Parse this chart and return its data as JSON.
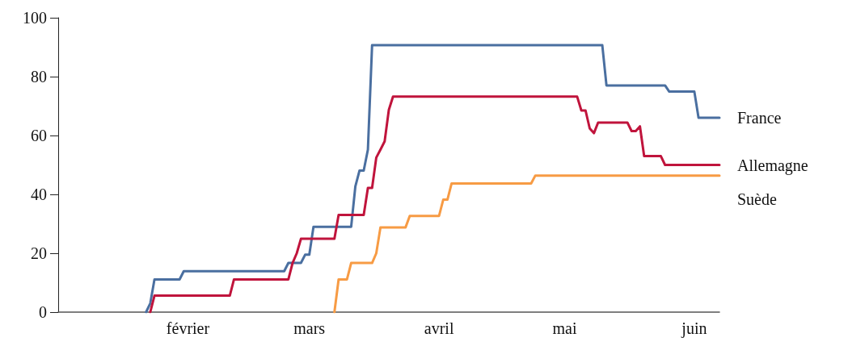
{
  "chart_data": {
    "type": "line",
    "categories": [
      null,
      null,
      null,
      null,
      null,
      null,
      null,
      null,
      null,
      null,
      null,
      null,
      null,
      null,
      null,
      null,
      null,
      null,
      null,
      null,
      null,
      null,
      null,
      null,
      null,
      null,
      null,
      null,
      null,
      null,
      null,
      "février",
      null,
      null,
      null,
      null,
      null,
      null,
      null,
      null,
      null,
      null,
      null,
      null,
      null,
      null,
      null,
      null,
      null,
      null,
      null,
      null,
      null,
      null,
      null,
      null,
      null,
      null,
      null,
      null,
      "mars",
      null,
      null,
      null,
      null,
      null,
      null,
      null,
      null,
      null,
      null,
      null,
      null,
      null,
      null,
      null,
      null,
      null,
      null,
      null,
      null,
      null,
      null,
      null,
      null,
      null,
      null,
      null,
      null,
      null,
      null,
      "avril",
      null,
      null,
      null,
      null,
      null,
      null,
      null,
      null,
      null,
      null,
      null,
      null,
      null,
      null,
      null,
      null,
      null,
      null,
      null,
      null,
      null,
      null,
      null,
      null,
      null,
      null,
      null,
      null,
      null,
      "mai",
      null,
      null,
      null,
      null,
      null,
      null,
      null,
      null,
      null,
      null,
      null,
      null,
      null,
      null,
      null,
      null,
      null,
      null,
      null,
      null,
      null,
      null,
      null,
      null,
      null,
      null,
      null,
      null,
      null,
      null,
      "juin",
      null,
      null,
      null,
      null,
      null,
      null
    ],
    "ylim": [
      0,
      100
    ],
    "yticks": [
      0,
      20,
      40,
      60,
      80,
      100
    ],
    "grid": false,
    "marker": "none",
    "line_style": "solid",
    "series": [
      {
        "name": "France",
        "color": "#4a6fa0",
        "values": [
          null,
          null,
          null,
          null,
          null,
          null,
          null,
          null,
          null,
          null,
          null,
          null,
          null,
          null,
          null,
          null,
          null,
          null,
          null,
          null,
          null,
          0,
          3,
          11.1,
          11.1,
          11.1,
          11.1,
          11.1,
          11.1,
          11.1,
          13.9,
          13.9,
          13.9,
          13.9,
          13.9,
          13.9,
          13.9,
          13.9,
          13.9,
          13.9,
          13.9,
          13.9,
          13.9,
          13.9,
          13.9,
          13.9,
          13.9,
          13.9,
          13.9,
          13.9,
          13.9,
          13.9,
          13.9,
          13.9,
          13.9,
          16.7,
          16.7,
          16.7,
          16.7,
          19.5,
          19.5,
          29,
          29,
          29,
          29,
          29,
          29,
          29,
          29,
          29,
          29,
          42.7,
          48.1,
          48.1,
          55.2,
          90.7,
          90.7,
          90.7,
          90.7,
          90.7,
          90.7,
          90.7,
          90.7,
          90.7,
          90.7,
          90.7,
          90.7,
          90.7,
          90.7,
          90.7,
          90.7,
          90.7,
          90.7,
          90.7,
          90.7,
          90.7,
          90.7,
          90.7,
          90.7,
          90.7,
          90.7,
          90.7,
          90.7,
          90.7,
          90.7,
          90.7,
          90.7,
          90.7,
          90.7,
          90.7,
          90.7,
          90.7,
          90.7,
          90.7,
          90.7,
          90.7,
          90.7,
          90.7,
          90.7,
          90.7,
          90.7,
          90.7,
          90.7,
          90.7,
          90.7,
          90.7,
          90.7,
          90.7,
          90.7,
          90.7,
          90.7,
          77,
          77,
          77,
          77,
          77,
          77,
          77,
          77,
          77,
          77,
          77,
          77,
          77,
          77,
          77,
          74.9,
          74.9,
          74.9,
          74.9,
          74.9,
          74.9,
          74.9,
          66,
          66,
          66,
          66,
          66,
          66
        ]
      },
      {
        "name": "Allemagne",
        "color": "#c0143c",
        "values": [
          null,
          null,
          null,
          null,
          null,
          null,
          null,
          null,
          null,
          null,
          null,
          null,
          null,
          null,
          null,
          null,
          null,
          null,
          null,
          null,
          null,
          null,
          0,
          5.6,
          5.6,
          5.6,
          5.6,
          5.6,
          5.6,
          5.6,
          5.6,
          5.6,
          5.6,
          5.6,
          5.6,
          5.6,
          5.6,
          5.6,
          5.6,
          5.6,
          5.6,
          5.6,
          11.1,
          11.1,
          11.1,
          11.1,
          11.1,
          11.1,
          11.1,
          11.1,
          11.1,
          11.1,
          11.1,
          11.1,
          11.1,
          11.1,
          16.7,
          20,
          24.9,
          24.9,
          24.9,
          24.9,
          24.9,
          24.9,
          24.9,
          24.9,
          24.9,
          33,
          33,
          33,
          33,
          33,
          33,
          33,
          42.2,
          42.2,
          52.5,
          55.2,
          58,
          68.7,
          73.2,
          73.2,
          73.2,
          73.2,
          73.2,
          73.2,
          73.2,
          73.2,
          73.2,
          73.2,
          73.2,
          73.2,
          73.2,
          73.2,
          73.2,
          73.2,
          73.2,
          73.2,
          73.2,
          73.2,
          73.2,
          73.2,
          73.2,
          73.2,
          73.2,
          73.2,
          73.2,
          73.2,
          73.2,
          73.2,
          73.2,
          73.2,
          73.2,
          73.2,
          73.2,
          73.2,
          73.2,
          73.2,
          73.2,
          73.2,
          73.2,
          73.2,
          73.2,
          73.2,
          73.2,
          68.5,
          68.5,
          62.4,
          60.8,
          64.4,
          64.4,
          64.4,
          64.4,
          64.4,
          64.4,
          64.4,
          64.4,
          61.5,
          61.5,
          63.1,
          53,
          53,
          53,
          53,
          53,
          50,
          50,
          50,
          50,
          50,
          50,
          50,
          50,
          50,
          50,
          50,
          50,
          50,
          50
        ]
      },
      {
        "name": "Suède",
        "color": "#f79b44",
        "values": [
          null,
          null,
          null,
          null,
          null,
          null,
          null,
          null,
          null,
          null,
          null,
          null,
          null,
          null,
          null,
          null,
          null,
          null,
          null,
          null,
          null,
          null,
          null,
          null,
          null,
          null,
          null,
          null,
          null,
          null,
          null,
          null,
          null,
          null,
          null,
          null,
          null,
          null,
          null,
          null,
          null,
          null,
          null,
          null,
          null,
          null,
          null,
          null,
          null,
          null,
          null,
          null,
          null,
          null,
          null,
          null,
          null,
          null,
          null,
          null,
          null,
          null,
          null,
          null,
          null,
          null,
          0,
          11.1,
          11.1,
          11.1,
          16.7,
          16.7,
          16.7,
          16.7,
          16.7,
          16.7,
          20,
          28.8,
          28.8,
          28.8,
          28.8,
          28.8,
          28.8,
          28.8,
          32.7,
          32.7,
          32.7,
          32.7,
          32.7,
          32.7,
          32.7,
          32.7,
          38.2,
          38.2,
          43.7,
          43.7,
          43.7,
          43.7,
          43.7,
          43.7,
          43.7,
          43.7,
          43.7,
          43.7,
          43.7,
          43.7,
          43.7,
          43.7,
          43.7,
          43.7,
          43.7,
          43.7,
          43.7,
          43.7,
          46.4,
          46.4,
          46.4,
          46.4,
          46.4,
          46.4,
          46.4,
          46.4,
          46.4,
          46.4,
          46.4,
          46.4,
          46.4,
          46.4,
          46.4,
          46.4,
          46.4,
          46.4,
          46.4,
          46.4,
          46.4,
          46.4,
          46.4,
          46.4,
          46.4,
          46.4,
          46.4,
          46.4,
          46.4,
          46.4,
          46.4,
          46.4,
          46.4,
          46.4,
          46.4,
          46.4,
          46.4,
          46.4,
          46.4,
          46.4,
          46.4,
          46.4,
          46.4,
          46.4,
          46.4
        ]
      }
    ]
  }
}
